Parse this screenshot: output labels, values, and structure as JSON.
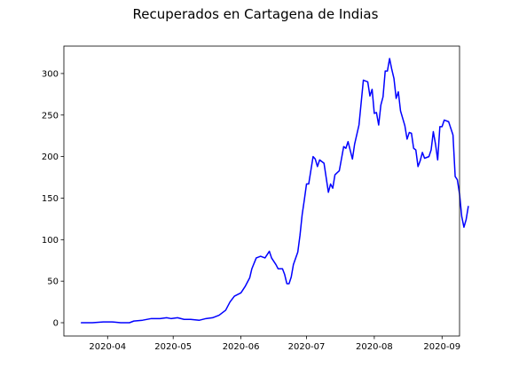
{
  "chart_data": {
    "type": "line",
    "title": "Recuperados en Cartagena de Indias",
    "xlabel": "",
    "ylabel": "",
    "x_range": [
      "2020-03-12",
      "2020-09-09"
    ],
    "ylim": [
      -16,
      333
    ],
    "grid": false,
    "legend": "none",
    "x_ticks": [
      {
        "date": "2020-04-01",
        "label": "2020-04"
      },
      {
        "date": "2020-05-01",
        "label": "2020-05"
      },
      {
        "date": "2020-06-01",
        "label": "2020-06"
      },
      {
        "date": "2020-07-01",
        "label": "2020-07"
      },
      {
        "date": "2020-08-01",
        "label": "2020-08"
      },
      {
        "date": "2020-09-01",
        "label": "2020-09"
      }
    ],
    "y_ticks": [
      0,
      50,
      100,
      150,
      200,
      250,
      300
    ],
    "series": [
      {
        "color": "#0000ff",
        "points": [
          [
            "2020-03-20",
            0
          ],
          [
            "2020-03-25",
            0
          ],
          [
            "2020-03-30",
            1
          ],
          [
            "2020-04-03",
            1
          ],
          [
            "2020-04-07",
            0
          ],
          [
            "2020-04-11",
            0
          ],
          [
            "2020-04-13",
            2
          ],
          [
            "2020-04-17",
            3
          ],
          [
            "2020-04-21",
            5
          ],
          [
            "2020-04-25",
            5
          ],
          [
            "2020-04-28",
            6
          ],
          [
            "2020-04-30",
            5
          ],
          [
            "2020-05-03",
            6
          ],
          [
            "2020-05-06",
            4
          ],
          [
            "2020-05-09",
            4
          ],
          [
            "2020-05-13",
            3
          ],
          [
            "2020-05-16",
            5
          ],
          [
            "2020-05-19",
            6
          ],
          [
            "2020-05-22",
            9
          ],
          [
            "2020-05-25",
            15
          ],
          [
            "2020-05-27",
            25
          ],
          [
            "2020-05-29",
            32
          ],
          [
            "2020-06-01",
            36
          ],
          [
            "2020-06-03",
            44
          ],
          [
            "2020-06-05",
            54
          ],
          [
            "2020-06-06",
            65
          ],
          [
            "2020-06-08",
            78
          ],
          [
            "2020-06-10",
            80
          ],
          [
            "2020-06-12",
            78
          ],
          [
            "2020-06-14",
            86
          ],
          [
            "2020-06-15",
            78
          ],
          [
            "2020-06-17",
            70
          ],
          [
            "2020-06-18",
            65
          ],
          [
            "2020-06-20",
            65
          ],
          [
            "2020-06-21",
            58
          ],
          [
            "2020-06-22",
            47
          ],
          [
            "2020-06-23",
            47
          ],
          [
            "2020-06-24",
            55
          ],
          [
            "2020-06-25",
            70
          ],
          [
            "2020-06-27",
            85
          ],
          [
            "2020-06-28",
            105
          ],
          [
            "2020-06-29",
            130
          ],
          [
            "2020-06-30",
            148
          ],
          [
            "2020-07-01",
            167
          ],
          [
            "2020-07-02",
            167
          ],
          [
            "2020-07-04",
            200
          ],
          [
            "2020-07-05",
            197
          ],
          [
            "2020-07-06",
            188
          ],
          [
            "2020-07-07",
            196
          ],
          [
            "2020-07-09",
            192
          ],
          [
            "2020-07-11",
            157
          ],
          [
            "2020-07-12",
            167
          ],
          [
            "2020-07-13",
            162
          ],
          [
            "2020-07-14",
            178
          ],
          [
            "2020-07-16",
            183
          ],
          [
            "2020-07-18",
            212
          ],
          [
            "2020-07-19",
            210
          ],
          [
            "2020-07-20",
            218
          ],
          [
            "2020-07-22",
            197
          ],
          [
            "2020-07-23",
            215
          ],
          [
            "2020-07-25",
            238
          ],
          [
            "2020-07-27",
            292
          ],
          [
            "2020-07-29",
            290
          ],
          [
            "2020-07-30",
            273
          ],
          [
            "2020-07-31",
            281
          ],
          [
            "2020-08-01",
            252
          ],
          [
            "2020-08-02",
            253
          ],
          [
            "2020-08-03",
            238
          ],
          [
            "2020-08-04",
            262
          ],
          [
            "2020-08-05",
            272
          ],
          [
            "2020-08-06",
            303
          ],
          [
            "2020-08-07",
            303
          ],
          [
            "2020-08-08",
            318
          ],
          [
            "2020-08-09",
            305
          ],
          [
            "2020-08-10",
            294
          ],
          [
            "2020-08-11",
            270
          ],
          [
            "2020-08-12",
            278
          ],
          [
            "2020-08-13",
            255
          ],
          [
            "2020-08-15",
            237
          ],
          [
            "2020-08-16",
            221
          ],
          [
            "2020-08-17",
            229
          ],
          [
            "2020-08-18",
            228
          ],
          [
            "2020-08-19",
            210
          ],
          [
            "2020-08-20",
            208
          ],
          [
            "2020-08-21",
            188
          ],
          [
            "2020-08-22",
            195
          ],
          [
            "2020-08-23",
            205
          ],
          [
            "2020-08-24",
            198
          ],
          [
            "2020-08-26",
            200
          ],
          [
            "2020-08-27",
            208
          ],
          [
            "2020-08-28",
            230
          ],
          [
            "2020-08-29",
            215
          ],
          [
            "2020-08-30",
            196
          ],
          [
            "2020-08-31",
            236
          ],
          [
            "2020-09-01",
            236
          ],
          [
            "2020-09-02",
            244
          ],
          [
            "2020-09-04",
            242
          ],
          [
            "2020-09-06",
            226
          ],
          [
            "2020-09-07",
            176
          ],
          [
            "2020-09-08",
            172
          ],
          [
            "2020-09-09",
            155
          ],
          [
            "2020-09-10",
            128
          ],
          [
            "2020-09-11",
            115
          ],
          [
            "2020-09-12",
            124
          ],
          [
            "2020-09-13",
            140
          ]
        ]
      }
    ]
  }
}
